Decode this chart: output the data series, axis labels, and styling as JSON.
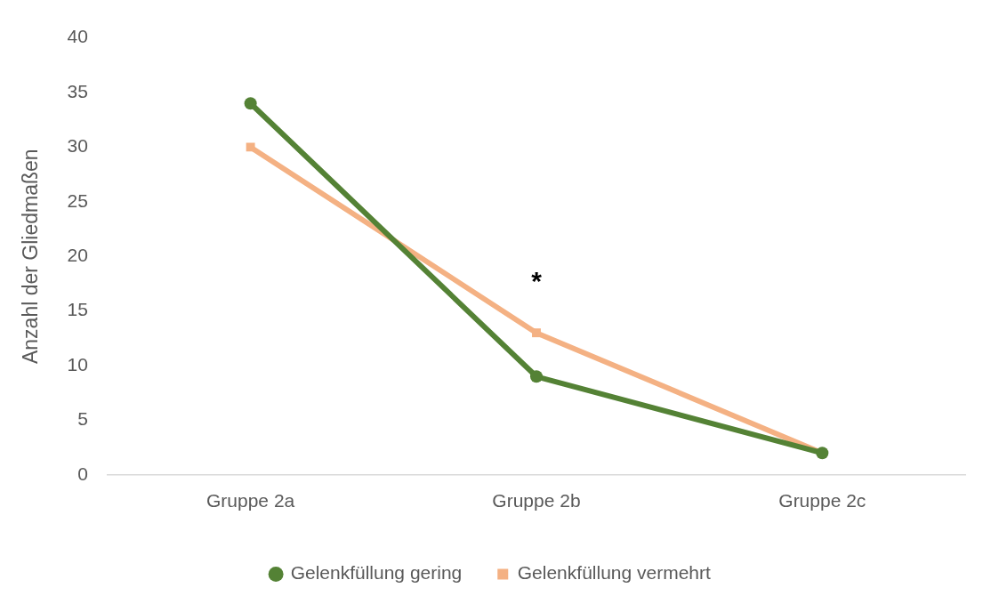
{
  "chart_data": {
    "type": "line",
    "ylabel": "Anzahl der Gliedmaßen",
    "categories": [
      "Gruppe 2a",
      "Gruppe 2b",
      "Gruppe 2c"
    ],
    "series": [
      {
        "name": "Gelenkfüllung gering",
        "color": "#548235",
        "marker": "circle",
        "values": [
          34,
          9,
          2
        ]
      },
      {
        "name": "Gelenkfüllung vermehrt",
        "color": "#f4b183",
        "marker": "square",
        "values": [
          30,
          13,
          2
        ]
      }
    ],
    "ylim": [
      0,
      40
    ],
    "yticks": [
      0,
      5,
      10,
      15,
      20,
      25,
      30,
      35,
      40
    ],
    "grid": false,
    "legend": "bottom",
    "line_style": "solid",
    "annotations": [
      "*"
    ]
  }
}
